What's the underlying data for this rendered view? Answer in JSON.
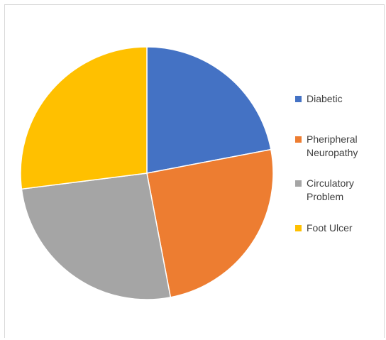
{
  "chart_data": {
    "type": "pie",
    "categories": [
      "Diabetic",
      "Pheripheral\nNeuropathy",
      "Circulatory\nProblem",
      "Foot Ulcer"
    ],
    "values": [
      22,
      25,
      26,
      27
    ],
    "colors": [
      "#4472c4",
      "#ed7d31",
      "#a5a5a5",
      "#ffc000"
    ],
    "legend": "right",
    "start_angle": "12 o'clock",
    "direction": "clockwise"
  }
}
